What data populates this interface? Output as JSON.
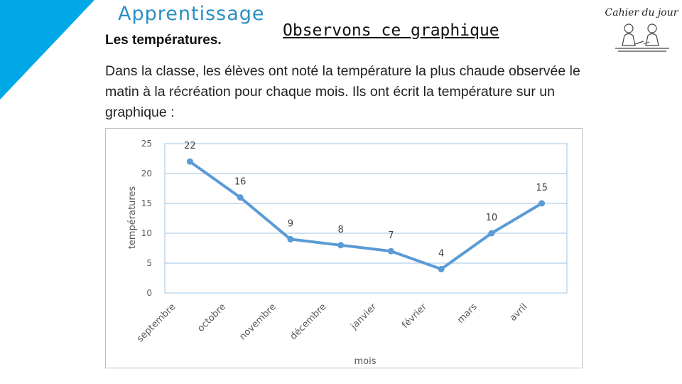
{
  "header": {
    "brand": "Apprentissage",
    "heading": "Les températures.",
    "title": "Observons ce graphique",
    "logo_text": "Cahier du jour"
  },
  "intro": "Dans la classe, les élèves ont noté la température la plus chaude observée le matin à la récréation pour chaque mois. Ils ont écrit la température sur un graphique :",
  "colors": {
    "accent": "#00a8e8",
    "brand_text": "#2a8fc5",
    "series": "#5b9bd5",
    "grid": "#9dc3e6"
  },
  "chart_data": {
    "type": "line",
    "title": "",
    "xlabel": "mois",
    "ylabel": "températures",
    "ylim": [
      0,
      25
    ],
    "yticks": [
      "0",
      "5",
      "10",
      "15",
      "20",
      "25"
    ],
    "categories": [
      "septembre",
      "octobre",
      "novembre",
      "décembre",
      "janvier",
      "février",
      "mars",
      "avril"
    ],
    "series": [
      {
        "values": [
          22,
          16,
          9,
          8,
          7,
          4,
          10,
          15
        ],
        "labels": [
          "22",
          "16",
          "9",
          "8",
          "7",
          "4",
          "10",
          "15"
        ]
      }
    ],
    "grid": true,
    "legend": "none"
  }
}
